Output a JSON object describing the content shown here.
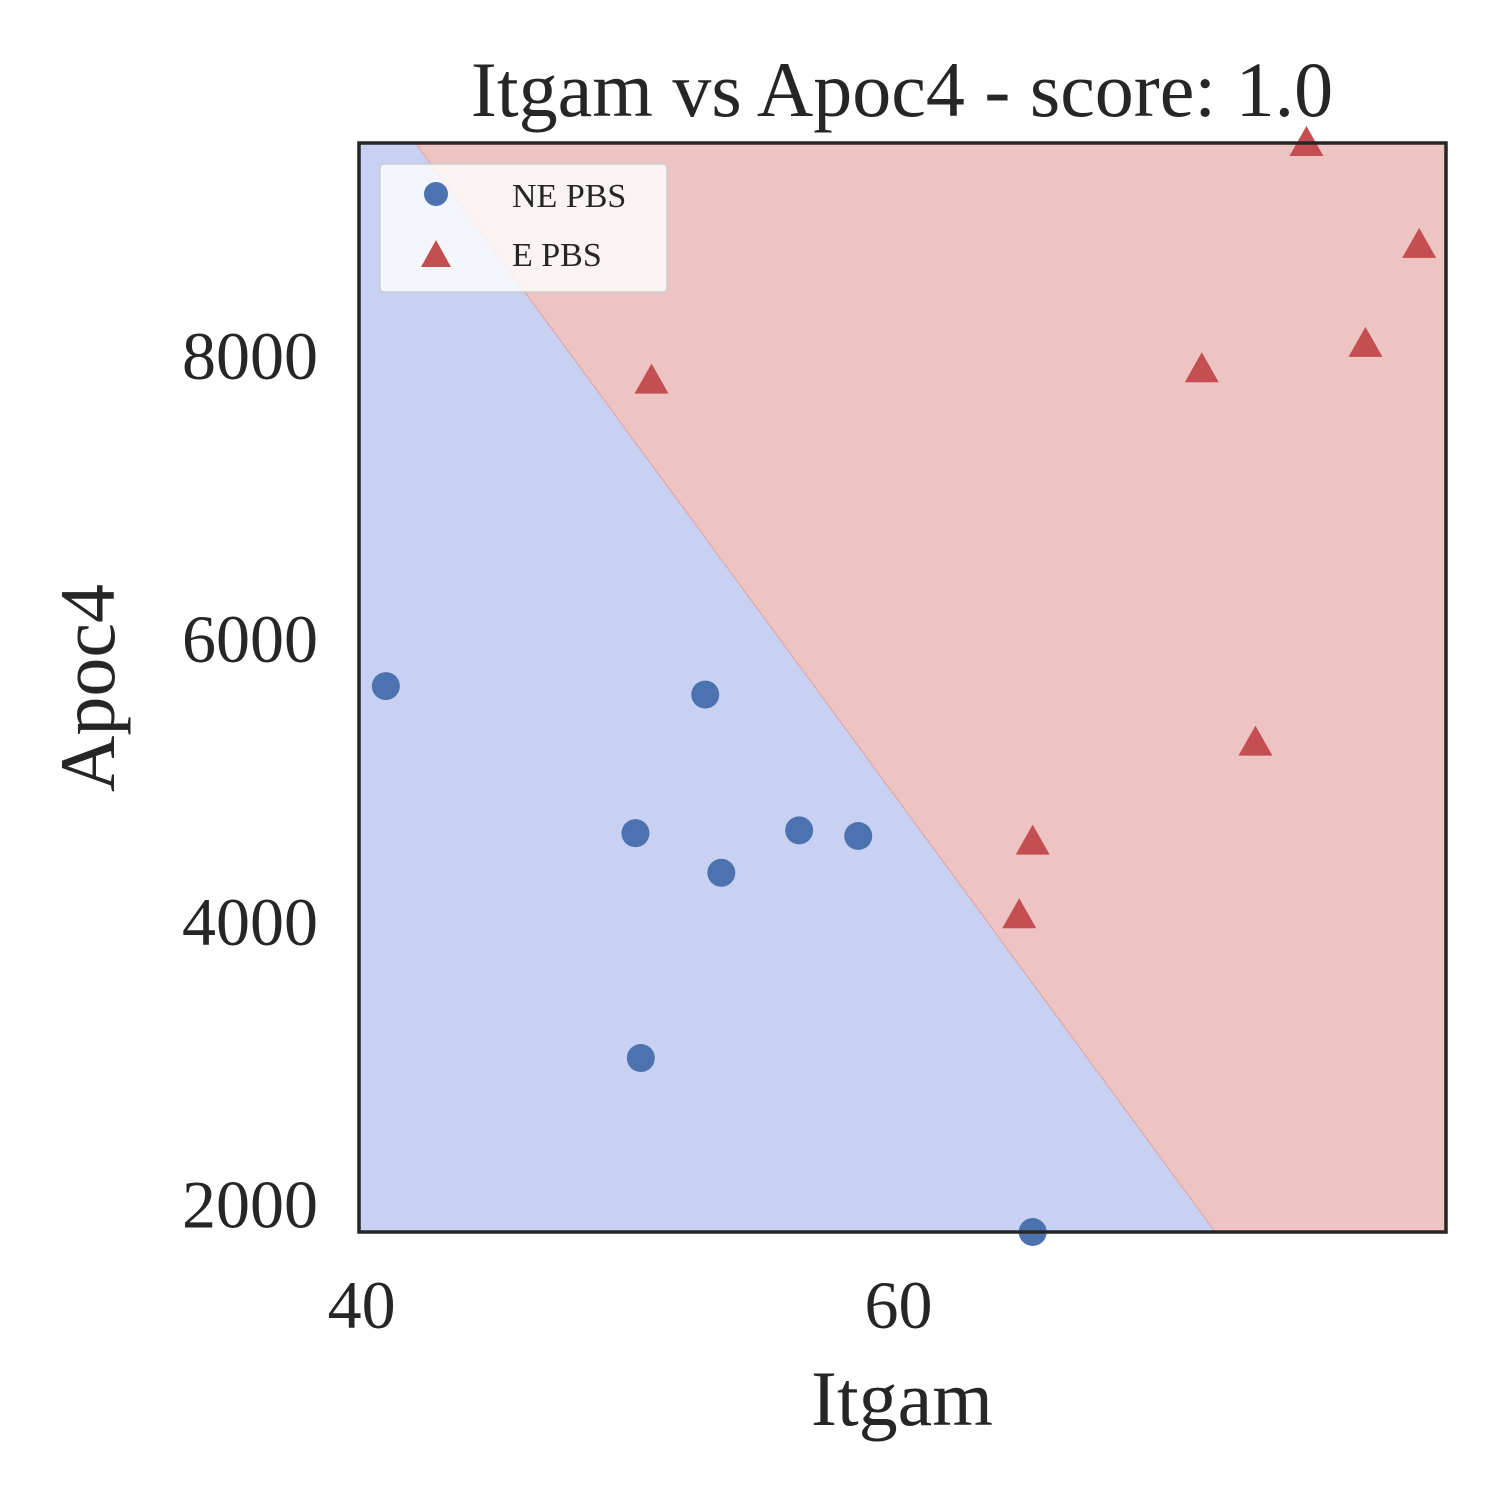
{
  "chart_data": {
    "type": "scatter",
    "title": "Itgam vs Apoc4 - score: 1.0",
    "xlabel": "Itgam",
    "ylabel": "Apoc4",
    "xlim": [
      39.9,
      80.4
    ],
    "ylim": [
      1800,
      9500
    ],
    "xticks": [
      {
        "value": 40,
        "label": "40"
      },
      {
        "value": 60,
        "label": "60"
      }
    ],
    "yticks": [
      {
        "value": 2000,
        "label": "2000"
      },
      {
        "value": 4000,
        "label": "4000"
      },
      {
        "value": 6000,
        "label": "6000"
      },
      {
        "value": 8000,
        "label": "8000"
      }
    ],
    "grid": false,
    "legend_position": "top-left",
    "decision_regions": {
      "boundary": [
        [
          42.0,
          9500
        ],
        [
          71.8,
          1800
        ]
      ],
      "below_color": "#c8d1f1",
      "above_color": "#eec4c3"
    },
    "series": [
      {
        "name": "NE PBS",
        "marker": "circle",
        "color": "#4c72b0",
        "points": [
          {
            "x": 40.9,
            "y": 5660
          },
          {
            "x": 50.2,
            "y": 4620
          },
          {
            "x": 50.4,
            "y": 3030
          },
          {
            "x": 52.8,
            "y": 5600
          },
          {
            "x": 53.4,
            "y": 4340
          },
          {
            "x": 56.3,
            "y": 4640
          },
          {
            "x": 58.5,
            "y": 4600
          },
          {
            "x": 65.0,
            "y": 1800
          }
        ]
      },
      {
        "name": "E PBS",
        "marker": "triangle",
        "color": "#c44e52",
        "points": [
          {
            "x": 50.8,
            "y": 7820
          },
          {
            "x": 64.5,
            "y": 4040
          },
          {
            "x": 65.0,
            "y": 4560
          },
          {
            "x": 71.3,
            "y": 7900
          },
          {
            "x": 73.3,
            "y": 5260
          },
          {
            "x": 75.2,
            "y": 9500
          },
          {
            "x": 77.4,
            "y": 8080
          },
          {
            "x": 79.4,
            "y": 8780
          }
        ]
      }
    ]
  }
}
